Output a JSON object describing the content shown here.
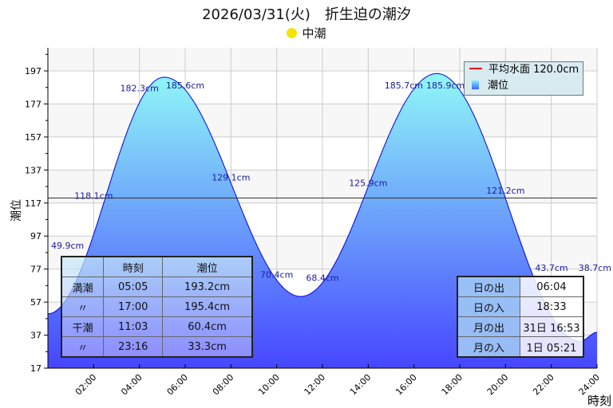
{
  "title": "2026/03/31(火)　折生迫の潮汐",
  "moon_phase": "中潮",
  "legend": {
    "mean": "平均水面 120.0cm",
    "tide": "潮位"
  },
  "tide_table": {
    "headers": [
      "",
      "時刻",
      "潮位"
    ],
    "rows": [
      [
        "満潮",
        "05:05",
        "193.2cm"
      ],
      [
        "〃",
        "17:00",
        "195.4cm"
      ],
      [
        "干潮",
        "11:03",
        "60.4cm"
      ],
      [
        "〃",
        "23:16",
        "33.3cm"
      ]
    ]
  },
  "sun_moon_table": {
    "rows": [
      [
        "日の出",
        "06:04"
      ],
      [
        "日の入",
        "18:33"
      ],
      [
        "月の出",
        "31日 16:53"
      ],
      [
        "月の入",
        "1日 05:21"
      ]
    ]
  },
  "colors": {
    "fill_top": "#90f8f8",
    "fill_bottom": "#4646ff",
    "line": "#0000ee",
    "mean": "#333333"
  },
  "chart_data": {
    "type": "area",
    "title": "2026/03/31(火)　折生迫の潮汐",
    "xlabel": "時刻",
    "ylabel": "潮位",
    "ylim": [
      17,
      211
    ],
    "xlim": [
      0,
      24
    ],
    "yticks": [
      17,
      37,
      57,
      77,
      97,
      117,
      137,
      157,
      177,
      197
    ],
    "xticks": [
      "02:00",
      "04:00",
      "06:00",
      "08:00",
      "10:00",
      "12:00",
      "14:00",
      "16:00",
      "18:00",
      "20:00",
      "22:00",
      "24:00"
    ],
    "mean_level": 120.0,
    "extremes": [
      [
        0,
        49.9
      ],
      [
        5.083,
        193.2
      ],
      [
        11.05,
        60.4
      ],
      [
        17.0,
        195.4
      ],
      [
        23.267,
        33.3
      ],
      [
        24,
        38.7
      ]
    ],
    "point_labels": [
      [
        0,
        "49.9cm"
      ],
      [
        2,
        "118.1cm"
      ],
      [
        4,
        "182.3cm"
      ],
      [
        6,
        "185.6cm"
      ],
      [
        8,
        "129.1cm"
      ],
      [
        10,
        "70.4cm"
      ],
      [
        12,
        "68.4cm"
      ],
      [
        14,
        "125.9cm"
      ],
      [
        16,
        "185.7cm"
      ],
      [
        18,
        "185.9cm"
      ],
      [
        20,
        "121.2cm"
      ],
      [
        22,
        "43.7cm"
      ],
      [
        24,
        "38.7cm"
      ]
    ],
    "point_values": [
      49.9,
      118.1,
      182.3,
      185.6,
      129.1,
      70.4,
      68.4,
      125.9,
      185.7,
      185.9,
      121.2,
      43.7,
      38.7
    ]
  }
}
